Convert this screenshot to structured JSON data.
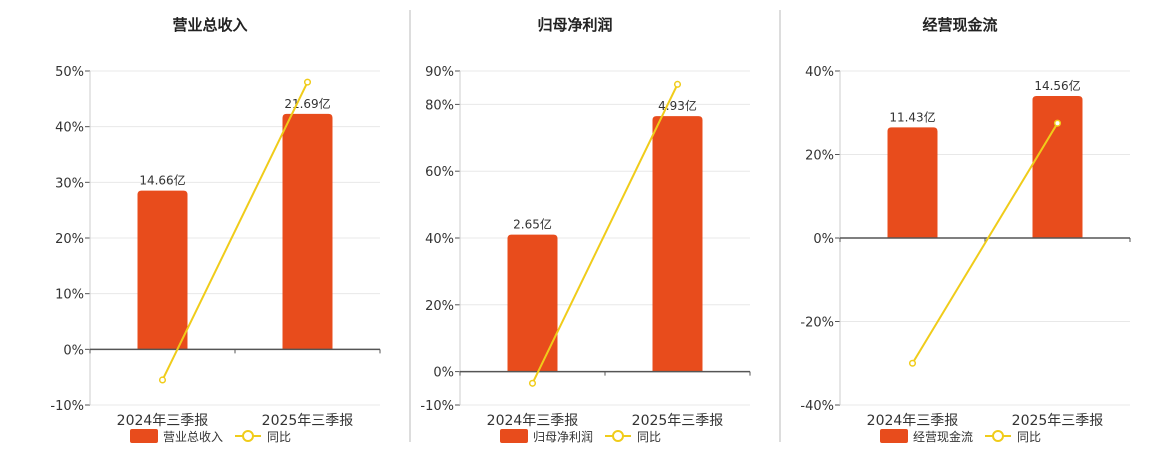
{
  "colors": {
    "bar": "#e84c1c",
    "line": "#f0cc1a",
    "grid": "#e8e8e8",
    "axis": "#555555",
    "text": "#333333",
    "divider": "#bbbbbb"
  },
  "chart_data": [
    {
      "type": "bar",
      "title": "营业总收入",
      "categories": [
        "2024年三季报",
        "2025年三季报"
      ],
      "ylim": [
        -10,
        50
      ],
      "yticks": [
        -10,
        0,
        10,
        20,
        30,
        40,
        50
      ],
      "ytick_labels": [
        "-10%",
        "0%",
        "10%",
        "20%",
        "30%",
        "40%",
        "50%"
      ],
      "series": [
        {
          "name": "营业总收入",
          "kind": "bar",
          "values": [
            28.5,
            42.3
          ],
          "labels": [
            "14.66亿",
            "21.69亿"
          ]
        },
        {
          "name": "同比",
          "kind": "line",
          "values": [
            -5.5,
            48.0
          ]
        }
      ],
      "legend": "bottom",
      "grid": true
    },
    {
      "type": "bar",
      "title": "归母净利润",
      "categories": [
        "2024年三季报",
        "2025年三季报"
      ],
      "ylim": [
        -10,
        90
      ],
      "yticks": [
        -10,
        0,
        20,
        40,
        60,
        80,
        90
      ],
      "ytick_labels": [
        "-10%",
        "0%",
        "20%",
        "40%",
        "60%",
        "80%",
        "90%"
      ],
      "series": [
        {
          "name": "归母净利润",
          "kind": "bar",
          "values": [
            41.0,
            76.5
          ],
          "labels": [
            "2.65亿",
            "4.93亿"
          ]
        },
        {
          "name": "同比",
          "kind": "line",
          "values": [
            -3.5,
            86.0
          ]
        }
      ],
      "legend": "bottom",
      "grid": true
    },
    {
      "type": "bar",
      "title": "经营现金流",
      "categories": [
        "2024年三季报",
        "2025年三季报"
      ],
      "ylim": [
        -40,
        40
      ],
      "yticks": [
        -40,
        -20,
        0,
        20,
        40
      ],
      "ytick_labels": [
        "-40%",
        "-20%",
        "0%",
        "20%",
        "40%"
      ],
      "series": [
        {
          "name": "经营现金流",
          "kind": "bar",
          "values": [
            26.5,
            34.0
          ],
          "labels": [
            "11.43亿",
            "14.56亿"
          ]
        },
        {
          "name": "同比",
          "kind": "line",
          "values": [
            -30.0,
            27.5
          ]
        }
      ],
      "legend": "bottom",
      "grid": true
    }
  ]
}
